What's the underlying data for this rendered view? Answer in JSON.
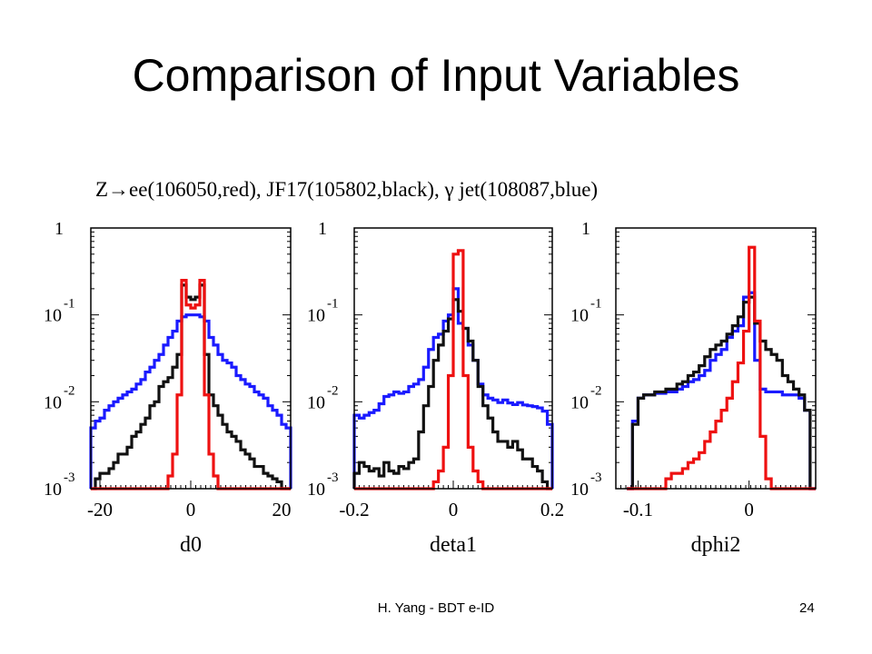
{
  "slide": {
    "title": "Comparison of Input Variables",
    "caption": "Z→ee(106050,red), JF17(105802,black), γ jet(108087,blue)",
    "footer_author": "H. Yang - BDT e-ID",
    "page_number": "24"
  },
  "colors": {
    "red": "#ee1111",
    "black": "#111111",
    "blue": "#1a1aff"
  },
  "y_tick_labels": [
    {
      "base": "1",
      "exp": ""
    },
    {
      "base": "10",
      "exp": "-1"
    },
    {
      "base": "10",
      "exp": "-2"
    },
    {
      "base": "10",
      "exp": "-3"
    }
  ],
  "chart_data": [
    {
      "type": "line",
      "xlabel": "d0",
      "xlim": [
        -22,
        22
      ],
      "yscale": "log",
      "ylim": [
        0.001,
        1
      ],
      "xtick_values": [
        -20,
        0,
        20
      ],
      "xtick_labels": [
        "-20",
        "0",
        "20"
      ],
      "x": [
        -22,
        -21,
        -20,
        -19,
        -18,
        -17,
        -16,
        -15,
        -14,
        -13,
        -12,
        -11,
        -10,
        -9,
        -8,
        -7,
        -6,
        -5,
        -4,
        -3,
        -2,
        -1,
        0,
        1,
        2,
        3,
        4,
        5,
        6,
        7,
        8,
        9,
        10,
        11,
        12,
        13,
        14,
        15,
        16,
        17,
        18,
        19,
        20,
        21
      ],
      "series": [
        {
          "color": "red",
          "values": [
            0.001,
            0.001,
            0.001,
            0.001,
            0.001,
            0.001,
            0.001,
            0.001,
            0.001,
            0.001,
            0.001,
            0.001,
            0.001,
            0.001,
            0.001,
            0.001,
            0.001,
            0.0014,
            0.0025,
            0.012,
            0.25,
            0.13,
            0.12,
            0.13,
            0.25,
            0.012,
            0.0025,
            0.0014,
            0.001,
            0.001,
            0.001,
            0.001,
            0.001,
            0.001,
            0.001,
            0.001,
            0.001,
            0.001,
            0.001,
            0.001,
            0.001,
            0.001,
            0.001,
            0.001
          ]
        },
        {
          "color": "black",
          "values": [
            0.001,
            0.0013,
            0.0015,
            0.0015,
            0.0017,
            0.002,
            0.0025,
            0.0025,
            0.003,
            0.004,
            0.0045,
            0.0055,
            0.0065,
            0.009,
            0.01,
            0.015,
            0.017,
            0.019,
            0.025,
            0.035,
            0.22,
            0.16,
            0.15,
            0.16,
            0.22,
            0.035,
            0.012,
            0.009,
            0.007,
            0.0055,
            0.0045,
            0.004,
            0.0035,
            0.0028,
            0.0025,
            0.0022,
            0.0018,
            0.0018,
            0.0015,
            0.0014,
            0.0013,
            0.0012,
            0.001,
            0.001
          ]
        },
        {
          "color": "blue",
          "values": [
            0.005,
            0.006,
            0.0065,
            0.008,
            0.009,
            0.01,
            0.011,
            0.012,
            0.013,
            0.014,
            0.016,
            0.018,
            0.022,
            0.025,
            0.03,
            0.035,
            0.045,
            0.055,
            0.065,
            0.085,
            0.095,
            0.1,
            0.1,
            0.1,
            0.095,
            0.085,
            0.055,
            0.045,
            0.035,
            0.03,
            0.028,
            0.025,
            0.02,
            0.018,
            0.016,
            0.015,
            0.013,
            0.012,
            0.011,
            0.009,
            0.008,
            0.007,
            0.0055,
            0.005
          ]
        }
      ]
    },
    {
      "type": "line",
      "xlabel": "deta1",
      "xlim": [
        -0.2,
        0.2
      ],
      "yscale": "log",
      "ylim": [
        0.001,
        1
      ],
      "xtick_values": [
        -0.2,
        0,
        0.2
      ],
      "xtick_labels": [
        "-0.2",
        "0",
        "0.2"
      ],
      "x": [
        -0.2,
        -0.19,
        -0.18,
        -0.17,
        -0.16,
        -0.15,
        -0.14,
        -0.13,
        -0.12,
        -0.11,
        -0.1,
        -0.09,
        -0.08,
        -0.07,
        -0.06,
        -0.05,
        -0.04,
        -0.03,
        -0.02,
        -0.01,
        0,
        0.01,
        0.02,
        0.03,
        0.04,
        0.05,
        0.06,
        0.07,
        0.08,
        0.09,
        0.1,
        0.11,
        0.12,
        0.13,
        0.14,
        0.15,
        0.16,
        0.17,
        0.18,
        0.19
      ],
      "series": [
        {
          "color": "red",
          "values": [
            0.001,
            0.001,
            0.001,
            0.001,
            0.001,
            0.001,
            0.001,
            0.001,
            0.001,
            0.001,
            0.001,
            0.001,
            0.001,
            0.001,
            0.001,
            0.001,
            0.0012,
            0.0016,
            0.003,
            0.02,
            0.5,
            0.55,
            0.02,
            0.003,
            0.0016,
            0.0012,
            0.001,
            0.001,
            0.001,
            0.001,
            0.001,
            0.001,
            0.001,
            0.001,
            0.001,
            0.001,
            0.001,
            0.001,
            0.001,
            0.001
          ]
        },
        {
          "color": "black",
          "values": [
            0.0015,
            0.002,
            0.0018,
            0.0016,
            0.0017,
            0.0014,
            0.002,
            0.0016,
            0.0015,
            0.0018,
            0.0017,
            0.002,
            0.0022,
            0.0045,
            0.009,
            0.015,
            0.03,
            0.045,
            0.065,
            0.09,
            0.15,
            0.11,
            0.07,
            0.05,
            0.03,
            0.015,
            0.009,
            0.0065,
            0.0045,
            0.0035,
            0.0035,
            0.003,
            0.0035,
            0.0028,
            0.0022,
            0.0022,
            0.0018,
            0.0016,
            0.0012,
            0.001
          ]
        },
        {
          "color": "blue",
          "values": [
            0.007,
            0.0065,
            0.007,
            0.0075,
            0.008,
            0.0095,
            0.0115,
            0.012,
            0.013,
            0.0125,
            0.013,
            0.015,
            0.016,
            0.018,
            0.025,
            0.04,
            0.055,
            0.06,
            0.085,
            0.1,
            0.2,
            0.08,
            0.07,
            0.045,
            0.03,
            0.016,
            0.012,
            0.011,
            0.0105,
            0.0098,
            0.0105,
            0.0097,
            0.0093,
            0.0098,
            0.0092,
            0.009,
            0.0088,
            0.0085,
            0.0078,
            0.0055
          ]
        }
      ]
    },
    {
      "type": "line",
      "xlabel": "dphi2",
      "xlim": [
        -0.12,
        0.06
      ],
      "yscale": "log",
      "ylim": [
        0.001,
        1
      ],
      "xtick_values": [
        -0.1,
        0
      ],
      "xtick_labels": [
        "-0.1",
        "0"
      ],
      "x": [
        -0.11,
        -0.105,
        -0.1,
        -0.095,
        -0.09,
        -0.085,
        -0.08,
        -0.075,
        -0.07,
        -0.065,
        -0.06,
        -0.055,
        -0.05,
        -0.045,
        -0.04,
        -0.035,
        -0.03,
        -0.025,
        -0.02,
        -0.015,
        -0.01,
        -0.005,
        0,
        0.005,
        0.01,
        0.015,
        0.02,
        0.025,
        0.03,
        0.035,
        0.04,
        0.045,
        0.05,
        0.055
      ],
      "series": [
        {
          "color": "red",
          "values": [
            0.001,
            0.001,
            0.001,
            0.001,
            0.001,
            0.001,
            0.001,
            0.0013,
            0.0015,
            0.0015,
            0.0017,
            0.002,
            0.0022,
            0.0026,
            0.0035,
            0.0045,
            0.006,
            0.008,
            0.011,
            0.017,
            0.028,
            0.065,
            0.6,
            0.085,
            0.004,
            0.0013,
            0.001,
            0.001,
            0.001,
            0.001,
            0.001,
            0.001,
            0.001,
            0.001
          ]
        },
        {
          "color": "black",
          "values": [
            0.001,
            0.0055,
            0.011,
            0.012,
            0.012,
            0.013,
            0.013,
            0.014,
            0.014,
            0.016,
            0.017,
            0.02,
            0.022,
            0.026,
            0.033,
            0.04,
            0.045,
            0.05,
            0.06,
            0.075,
            0.095,
            0.14,
            0.16,
            0.08,
            0.05,
            0.04,
            0.035,
            0.03,
            0.02,
            0.017,
            0.014,
            0.012,
            0.008,
            0.001
          ]
        },
        {
          "color": "blue",
          "values": [
            0.001,
            0.006,
            0.011,
            0.012,
            0.012,
            0.0125,
            0.0125,
            0.013,
            0.013,
            0.014,
            0.015,
            0.017,
            0.018,
            0.02,
            0.023,
            0.03,
            0.035,
            0.04,
            0.055,
            0.065,
            0.075,
            0.16,
            0.18,
            0.03,
            0.014,
            0.013,
            0.013,
            0.013,
            0.012,
            0.012,
            0.012,
            0.011,
            0.008,
            0.001
          ]
        }
      ]
    }
  ]
}
